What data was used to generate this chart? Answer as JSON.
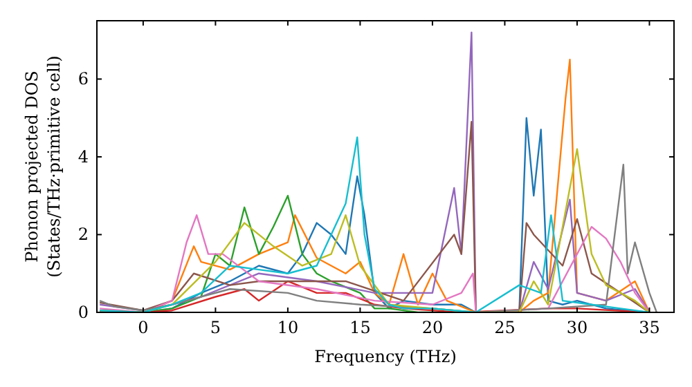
{
  "chart_data": {
    "type": "line",
    "xlabel": "Frequency (THz)",
    "ylabel": "Phonon projected DOS\n(States/THz·primitive cell)",
    "xlim": [
      -3.2,
      36.7
    ],
    "ylim": [
      0,
      7.5
    ],
    "xticks": [
      0,
      5,
      10,
      15,
      20,
      25,
      30,
      35
    ],
    "yticks": [
      0,
      2,
      4,
      6
    ],
    "grid": false,
    "series": [
      {
        "color": "#1f77b4",
        "x": [
          -3,
          0,
          2,
          4,
          6,
          8,
          10,
          11,
          12,
          13,
          14,
          14.8,
          15.3,
          16,
          17,
          18,
          20,
          22,
          23,
          26,
          26.5,
          27,
          27.5,
          28,
          29,
          30,
          32,
          35
        ],
        "values": [
          0.05,
          0,
          0.1,
          0.5,
          0.8,
          1.2,
          1.0,
          1.5,
          2.3,
          2.0,
          1.5,
          3.5,
          2.5,
          0.5,
          0.1,
          0.3,
          0.2,
          0.2,
          0,
          0,
          5.0,
          3.0,
          4.7,
          0.3,
          0.2,
          0.3,
          0.1,
          0
        ]
      },
      {
        "color": "#ff7f0e",
        "x": [
          -3,
          0,
          2,
          3.5,
          4,
          6,
          8,
          10,
          10.5,
          12,
          14,
          15,
          16,
          17,
          18,
          19,
          20,
          21,
          23,
          26,
          27,
          28,
          29.2,
          29.5,
          30,
          32,
          34,
          35
        ],
        "values": [
          0.05,
          0,
          0.3,
          1.7,
          1.3,
          1.1,
          1.5,
          1.8,
          2.5,
          1.4,
          1.0,
          1.3,
          0.5,
          0.2,
          1.5,
          0.2,
          1.0,
          0.3,
          0,
          0,
          0.3,
          0.5,
          5.5,
          6.5,
          0.5,
          0.3,
          0.8,
          0
        ]
      },
      {
        "color": "#2ca02c",
        "x": [
          -3,
          0,
          2,
          4,
          5,
          6,
          7,
          8,
          9,
          10,
          11,
          12,
          13,
          15,
          16,
          17,
          19,
          23,
          35
        ],
        "values": [
          0.05,
          0,
          0.1,
          0.4,
          1.5,
          1.2,
          2.7,
          1.5,
          2.2,
          3.0,
          1.5,
          1.0,
          0.8,
          0.5,
          0.1,
          0.1,
          0,
          0,
          0
        ]
      },
      {
        "color": "#d62728",
        "x": [
          -3,
          0,
          2,
          5,
          7,
          8,
          10,
          12,
          14,
          16,
          18,
          22,
          28,
          30,
          35
        ],
        "values": [
          0.02,
          0,
          0.05,
          0.4,
          0.6,
          0.3,
          0.8,
          0.5,
          0.5,
          0.2,
          0.1,
          0,
          0.1,
          0.1,
          0
        ]
      },
      {
        "color": "#9467bd",
        "x": [
          -3,
          0,
          2,
          4,
          8,
          12,
          16,
          20,
          21.5,
          22,
          22.7,
          23,
          26,
          27,
          28,
          29.5,
          30,
          32,
          34,
          35
        ],
        "values": [
          0.2,
          0.05,
          0.2,
          0.4,
          1.0,
          0.8,
          0.5,
          0.5,
          3.2,
          1.5,
          7.2,
          0,
          0,
          1.3,
          0.6,
          2.9,
          0.5,
          0.3,
          0.6,
          0
        ]
      },
      {
        "color": "#8c564b",
        "x": [
          -3,
          0,
          2,
          3.5,
          6,
          8,
          12,
          14,
          18,
          21.5,
          22,
          22.7,
          23,
          26,
          26.5,
          27,
          29,
          30,
          31,
          33,
          35
        ],
        "values": [
          0.25,
          0.05,
          0.3,
          1.0,
          0.7,
          0.8,
          0.8,
          0.8,
          0.3,
          2.0,
          1.5,
          4.9,
          0,
          0,
          2.3,
          2.0,
          1.2,
          2.4,
          1.0,
          0.5,
          0
        ]
      },
      {
        "color": "#e377c2",
        "x": [
          -3,
          0,
          2,
          3,
          3.7,
          4.5,
          5.5,
          8,
          12,
          16,
          20,
          22,
          22.8,
          23,
          28,
          31,
          32,
          33,
          34,
          35
        ],
        "values": [
          0.1,
          0,
          0.3,
          1.8,
          2.5,
          1.5,
          1.5,
          0.8,
          0.6,
          0.3,
          0.2,
          0.5,
          1.0,
          0,
          0.1,
          2.2,
          1.9,
          1.3,
          0.5,
          0
        ]
      },
      {
        "color": "#7f7f7f",
        "x": [
          -3,
          -2,
          0,
          2,
          6,
          10,
          12,
          15,
          20,
          23,
          28,
          32,
          33.2,
          33.5,
          34,
          35,
          35.5
        ],
        "values": [
          0.3,
          0.15,
          0.05,
          0.2,
          0.6,
          0.5,
          0.3,
          0.2,
          0.1,
          0,
          0.1,
          0.2,
          3.8,
          1.0,
          1.8,
          0.5,
          0
        ]
      },
      {
        "color": "#bcbd22",
        "x": [
          -3,
          0,
          2,
          5,
          7,
          9,
          11,
          13,
          14,
          15,
          17,
          20,
          23,
          26,
          27,
          28,
          30,
          31,
          32,
          34,
          35
        ],
        "values": [
          0.05,
          0,
          0.2,
          1.3,
          2.3,
          1.7,
          1.2,
          1.5,
          2.5,
          1.2,
          0.2,
          0.1,
          0,
          0,
          0.8,
          0.2,
          4.2,
          1.5,
          0.7,
          0.3,
          0
        ]
      },
      {
        "color": "#17becf",
        "x": [
          -3,
          0,
          2,
          4,
          6,
          8,
          10,
          12,
          14,
          14.8,
          15.3,
          16,
          17,
          18,
          20,
          23,
          26,
          27.5,
          28.2,
          29,
          31,
          33,
          35
        ],
        "values": [
          0.05,
          0,
          0.2,
          0.5,
          1.2,
          1.1,
          1.0,
          1.2,
          2.8,
          4.5,
          2.0,
          0.6,
          0.2,
          0.1,
          0.1,
          0,
          0.7,
          0.5,
          2.5,
          0.3,
          0.2,
          0.1,
          0
        ]
      }
    ]
  }
}
